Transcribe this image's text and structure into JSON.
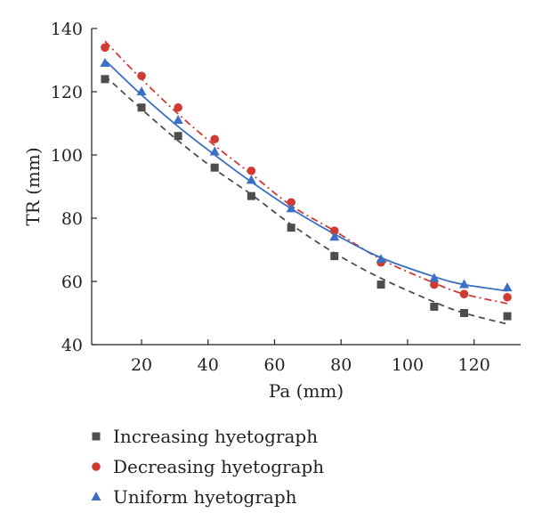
{
  "chart_data": {
    "type": "scatter",
    "xlabel": "Pa (mm)",
    "ylabel": "TR (mm)",
    "xlim": [
      5,
      134
    ],
    "ylim": [
      40,
      140
    ],
    "xticks": [
      20,
      40,
      60,
      80,
      100,
      120
    ],
    "yticks": [
      40,
      60,
      80,
      100,
      120,
      140
    ],
    "grid": false,
    "legend_position": "bottom",
    "series": [
      {
        "name": "Increasing hyetograph",
        "marker": "square",
        "color": "#4d4d4d",
        "fit_style": "dashed",
        "x": [
          9,
          20,
          31,
          42,
          53,
          65,
          78,
          92,
          108,
          117,
          130
        ],
        "y": [
          124,
          115,
          106,
          96,
          87,
          77,
          68,
          59,
          52,
          50,
          49
        ],
        "fit_y": [
          125,
          114.5,
          104.5,
          95.5,
          87.5,
          78,
          69,
          61,
          53.5,
          50,
          46.5
        ]
      },
      {
        "name": "Decreasing hyetograph",
        "marker": "circle",
        "color": "#cf3a32",
        "fit_style": "dash-dot",
        "x": [
          9,
          20,
          31,
          42,
          53,
          65,
          78,
          92,
          108,
          117,
          130
        ],
        "y": [
          134,
          125,
          115,
          105,
          95,
          85,
          76,
          66,
          59,
          56,
          55
        ],
        "fit_y": [
          136,
          124,
          113,
          103,
          94,
          84,
          76,
          67,
          59.5,
          56,
          53
        ]
      },
      {
        "name": "Uniform hyetograph",
        "marker": "triangle",
        "color": "#3a6fc4",
        "fit_style": "solid",
        "x": [
          9,
          20,
          31,
          42,
          53,
          65,
          78,
          92,
          108,
          117,
          130
        ],
        "y": [
          129,
          120,
          111,
          101,
          92,
          83,
          74,
          67,
          61,
          59,
          58
        ],
        "fit_y": [
          130,
          119,
          109,
          100,
          91.5,
          83,
          75,
          67.5,
          61.5,
          59,
          57
        ]
      }
    ]
  }
}
